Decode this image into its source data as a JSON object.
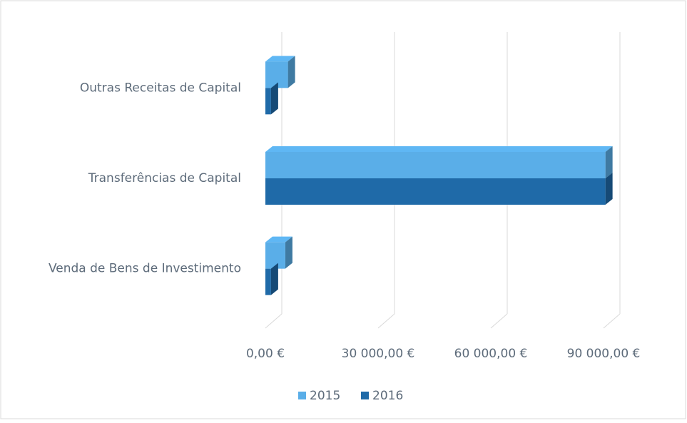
{
  "chart_data": {
    "type": "bar3d_horizontal",
    "categories": [
      "Outras Receitas de Capital",
      "Transferências de Capital",
      "Venda de Bens de Investimento"
    ],
    "series": [
      {
        "name": "2015",
        "color": "#5aaee8",
        "values": [
          6000,
          90500,
          5300
        ]
      },
      {
        "name": "2016",
        "color": "#1f6aa8",
        "values": [
          1500,
          90500,
          1500
        ]
      }
    ],
    "xlim": [
      0,
      90000
    ],
    "xticks": [
      {
        "value": 0,
        "label": "0,00 €"
      },
      {
        "value": 30000,
        "label": "30 000,00 €"
      },
      {
        "value": 60000,
        "label": "60 000,00 €"
      },
      {
        "value": 90000,
        "label": "90 000,00 €"
      }
    ],
    "grid": true,
    "legend": "bottom"
  }
}
